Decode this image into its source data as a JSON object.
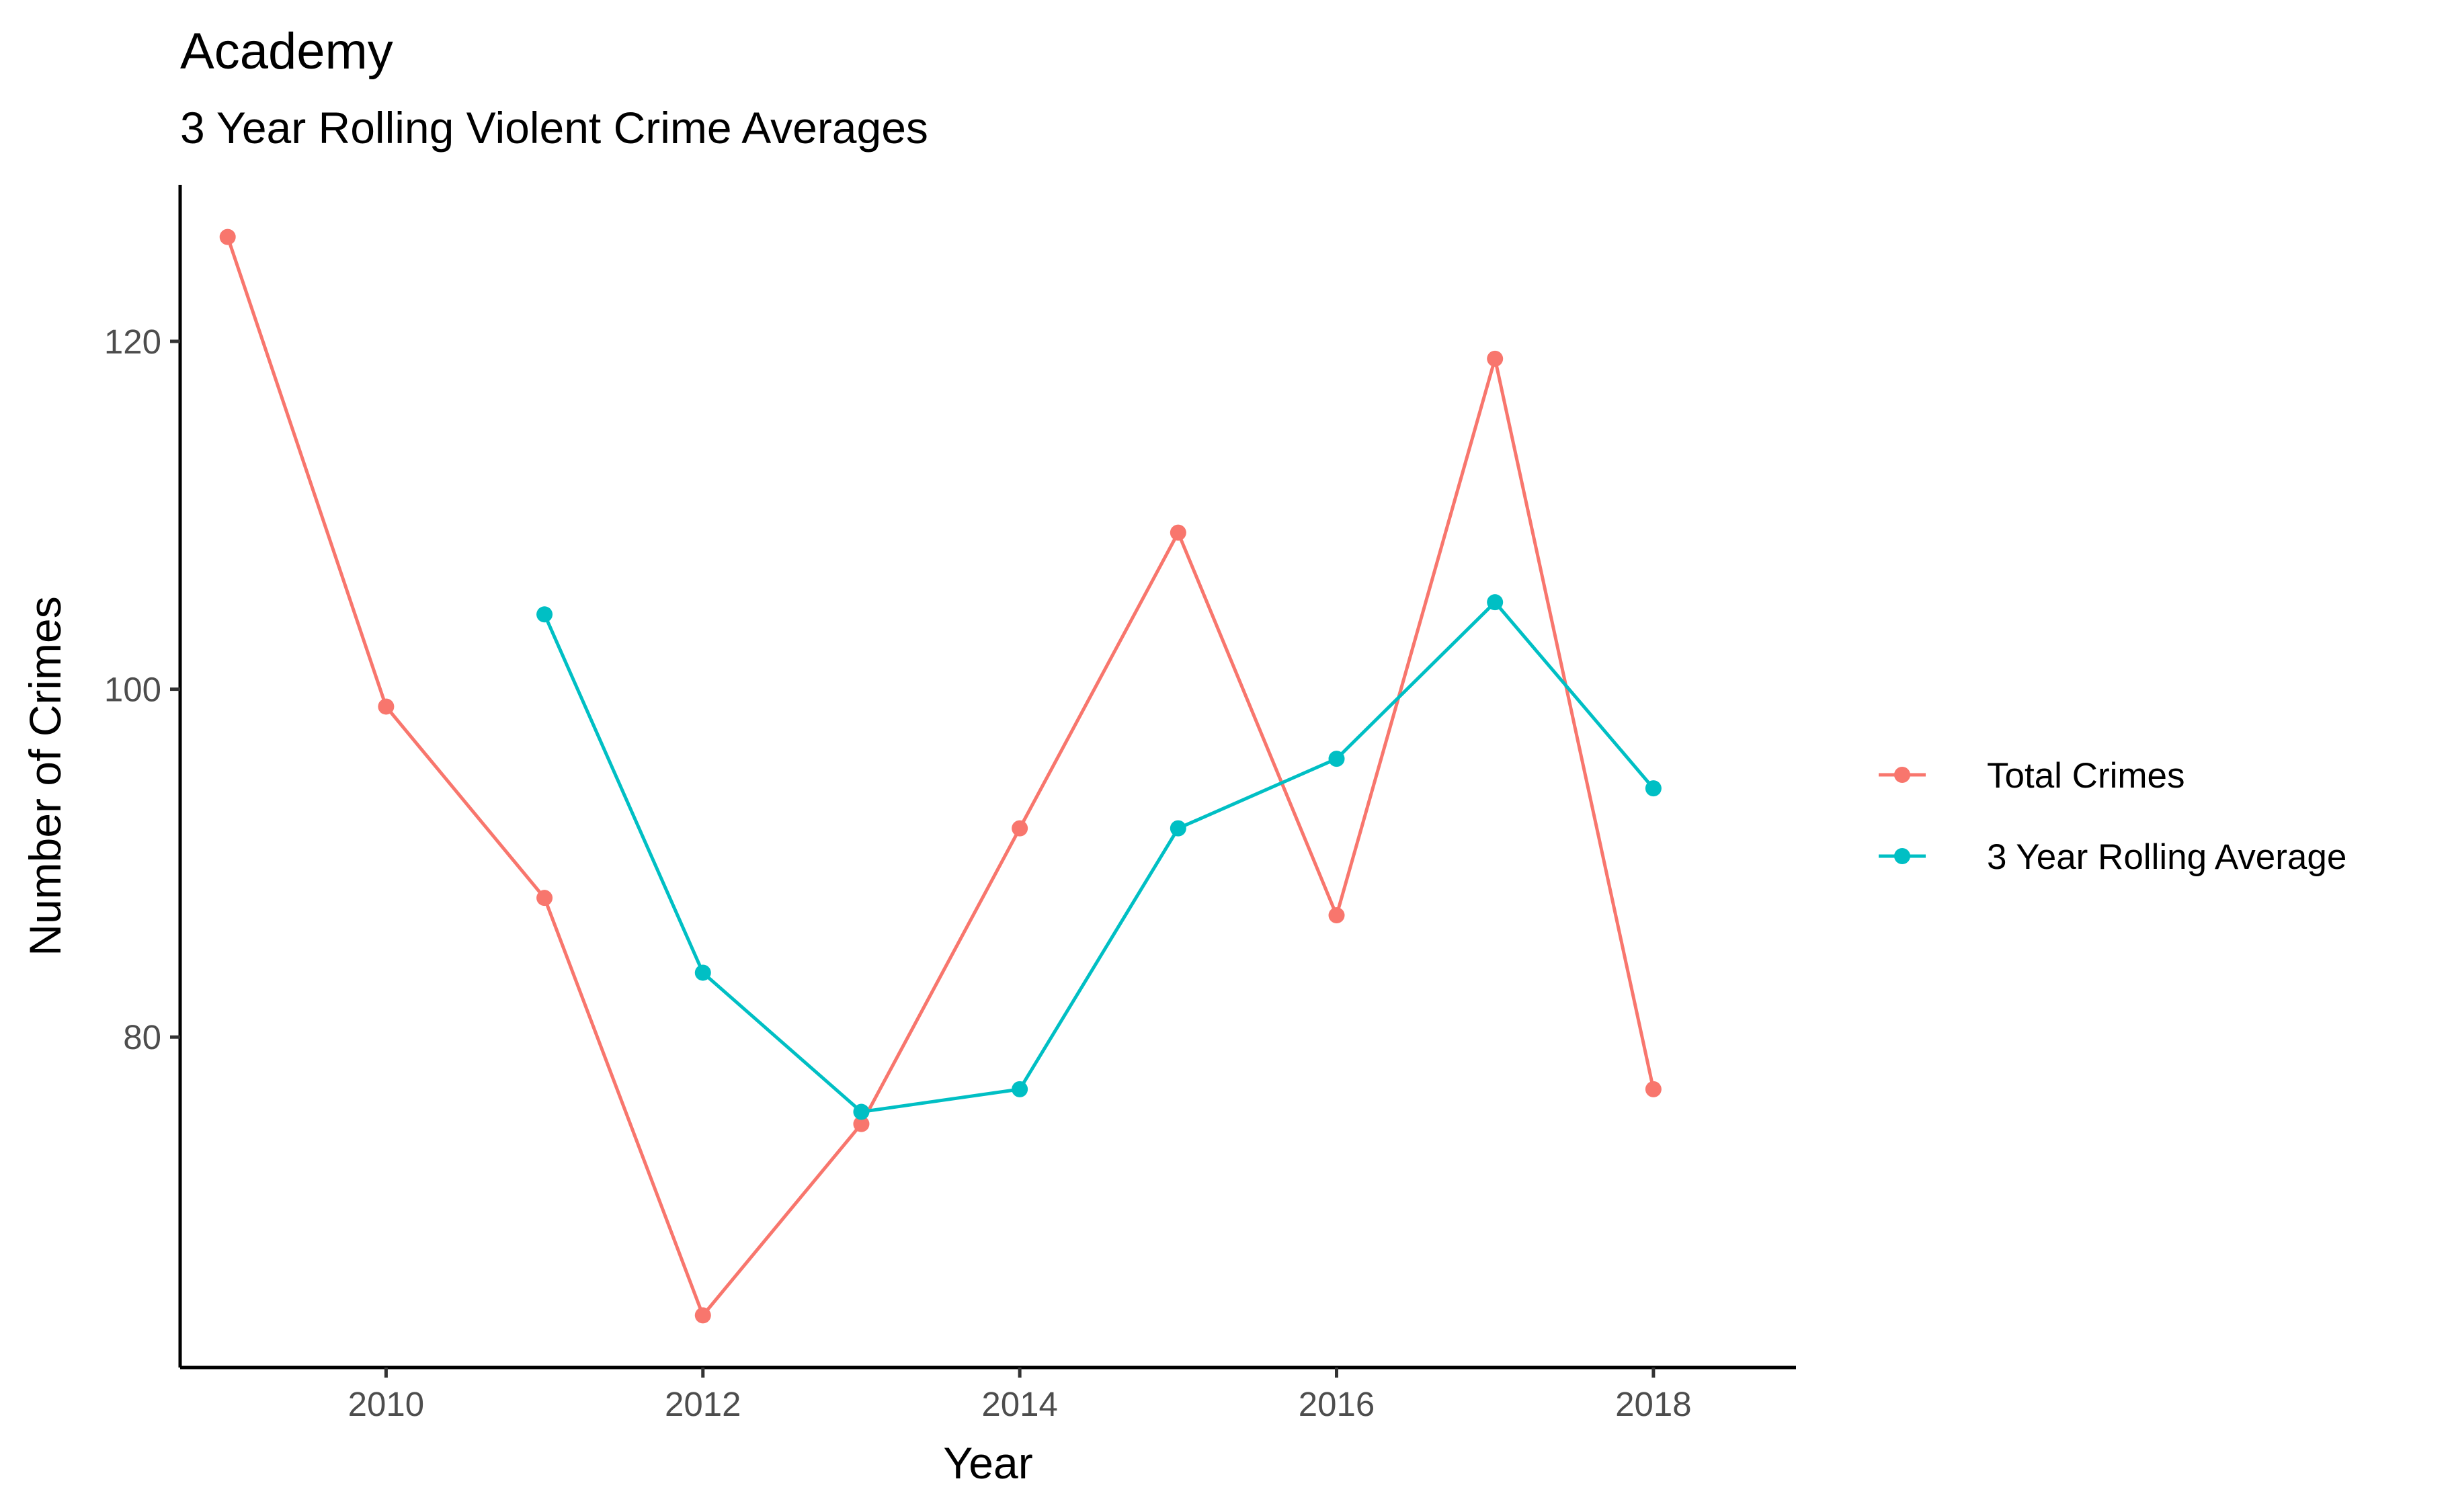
{
  "chart_data": {
    "type": "line",
    "title": "Academy",
    "subtitle": "3 Year Rolling Violent Crime Averages",
    "xlabel": "Year",
    "ylabel": "Number of Crimes",
    "xlim": [
      2008.7,
      2018.9
    ],
    "ylim": [
      61,
      129
    ],
    "x_ticks": [
      2010,
      2012,
      2014,
      2016,
      2018
    ],
    "y_ticks": [
      80,
      100,
      120
    ],
    "grid": false,
    "legend_position": "right",
    "series": [
      {
        "name": "Total Crimes",
        "color": "#F8766D",
        "x": [
          2009,
          2010,
          2011,
          2012,
          2013,
          2014,
          2015,
          2016,
          2017,
          2018
        ],
        "y": [
          126,
          99,
          88,
          64,
          75,
          92,
          109,
          87,
          119,
          77
        ]
      },
      {
        "name": "3 Year Rolling Average",
        "color": "#00BFC4",
        "x": [
          2011,
          2012,
          2013,
          2014,
          2015,
          2016,
          2017,
          2018
        ],
        "y": [
          104.3,
          83.7,
          75.7,
          77,
          92,
          96,
          105,
          94.3
        ]
      }
    ]
  }
}
